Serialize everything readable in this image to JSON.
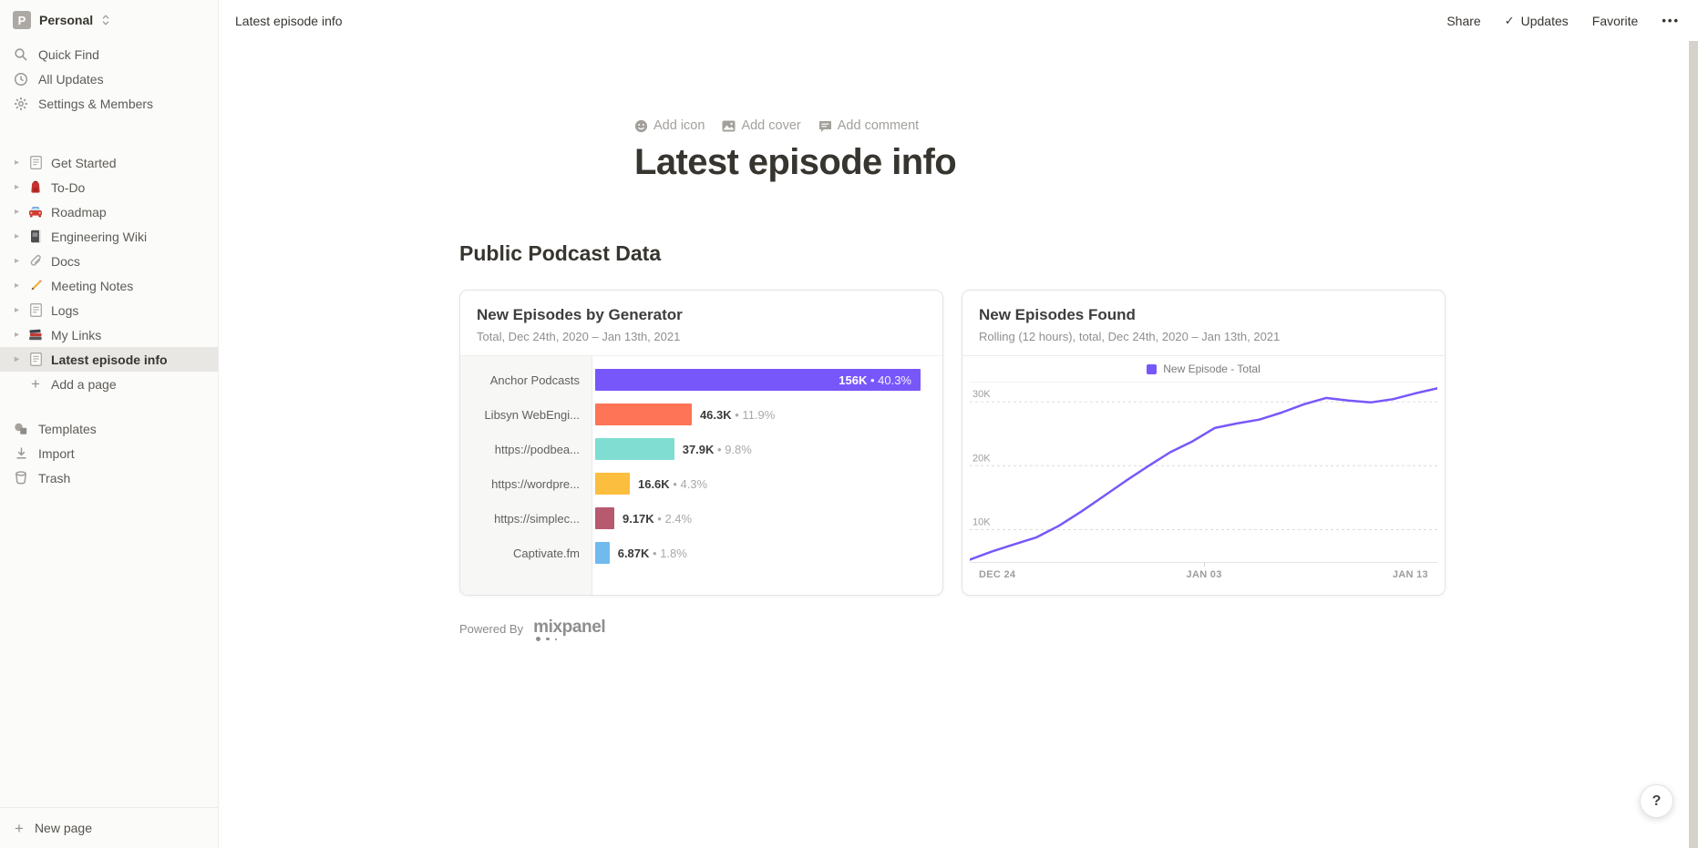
{
  "workspace": {
    "name": "Personal",
    "avatar_letter": "P"
  },
  "sidebar": {
    "menu": [
      {
        "label": "Quick Find",
        "icon": "search-icon"
      },
      {
        "label": "All Updates",
        "icon": "clock-icon"
      },
      {
        "label": "Settings & Members",
        "icon": "gear-icon"
      }
    ],
    "pages": [
      {
        "label": "Get Started",
        "icon": "page-icon",
        "selected": false
      },
      {
        "label": "To-Do",
        "icon": "backpack-icon",
        "selected": false
      },
      {
        "label": "Roadmap",
        "icon": "car-icon",
        "selected": false
      },
      {
        "label": "Engineering Wiki",
        "icon": "notebook-icon",
        "selected": false
      },
      {
        "label": "Docs",
        "icon": "paperclip-icon",
        "selected": false
      },
      {
        "label": "Meeting Notes",
        "icon": "pencil-icon",
        "selected": false
      },
      {
        "label": "Logs",
        "icon": "page-icon",
        "selected": false
      },
      {
        "label": "My Links",
        "icon": "books-icon",
        "selected": false
      },
      {
        "label": "Latest episode info",
        "icon": "page-icon",
        "selected": true
      }
    ],
    "add_page_label": "Add a page",
    "footer": [
      {
        "label": "Templates",
        "icon": "templates-icon"
      },
      {
        "label": "Import",
        "icon": "import-icon"
      },
      {
        "label": "Trash",
        "icon": "trash-icon"
      }
    ],
    "new_page_label": "New page"
  },
  "topbar": {
    "breadcrumb": "Latest episode info",
    "share_label": "Share",
    "updates_label": "Updates",
    "favorite_label": "Favorite",
    "more_label": "•••"
  },
  "page": {
    "add_icon_label": "Add icon",
    "add_cover_label": "Add cover",
    "add_comment_label": "Add comment",
    "title": "Latest episode info",
    "section_heading": "Public Podcast Data",
    "powered_by_label": "Powered By",
    "mixpanel_label": "mixpanel"
  },
  "help_label": "?",
  "chart_data": [
    {
      "type": "bar",
      "orientation": "horizontal",
      "title": "New Episodes by Generator",
      "subtitle": "Total, Dec 24th, 2020 – Jan 13th, 2021",
      "categories": [
        "Anchor Podcasts",
        "Libsyn WebEngi...",
        "https://podbea...",
        "https://wordpre...",
        "https://simplec...",
        "Captivate.fm"
      ],
      "values_k": [
        156,
        46.3,
        37.9,
        16.6,
        9.17,
        6.87
      ],
      "value_labels": [
        "156K",
        "46.3K",
        "37.9K",
        "16.6K",
        "9.17K",
        "6.87K"
      ],
      "percent_labels": [
        "40.3%",
        "11.9%",
        "9.8%",
        "4.3%",
        "2.4%",
        "1.8%"
      ],
      "bar_colors": [
        "#7857FA",
        "#FD7456",
        "#7FDED1",
        "#FBBE3E",
        "#B75A70",
        "#70BAEF"
      ],
      "max_value_k": 156,
      "separator": "•"
    },
    {
      "type": "line",
      "title": "New Episodes Found",
      "subtitle": "Rolling (12 hours), total, Dec 24th, 2020 – Jan 13th, 2021",
      "legend": [
        {
          "label": "New Episode - Total",
          "color": "#7857FA"
        }
      ],
      "line_color": "#7857FA",
      "grid": "dashed-horizontal",
      "y_ticks": [
        {
          "label": "30K",
          "value_k": 30
        },
        {
          "label": "20K",
          "value_k": 20
        },
        {
          "label": "10K",
          "value_k": 10
        }
      ],
      "ylim_k": [
        4.8,
        33
      ],
      "x_ticks": [
        "DEC 24",
        "JAN 03",
        "JAN 13"
      ],
      "values_k": [
        5.3,
        6.6,
        7.7,
        8.8,
        10.6,
        12.8,
        15.2,
        17.6,
        19.9,
        22.1,
        23.8,
        25.9,
        26.6,
        27.2,
        28.3,
        29.6,
        30.6,
        30.2,
        29.9,
        30.4,
        31.3,
        32.1
      ]
    }
  ]
}
